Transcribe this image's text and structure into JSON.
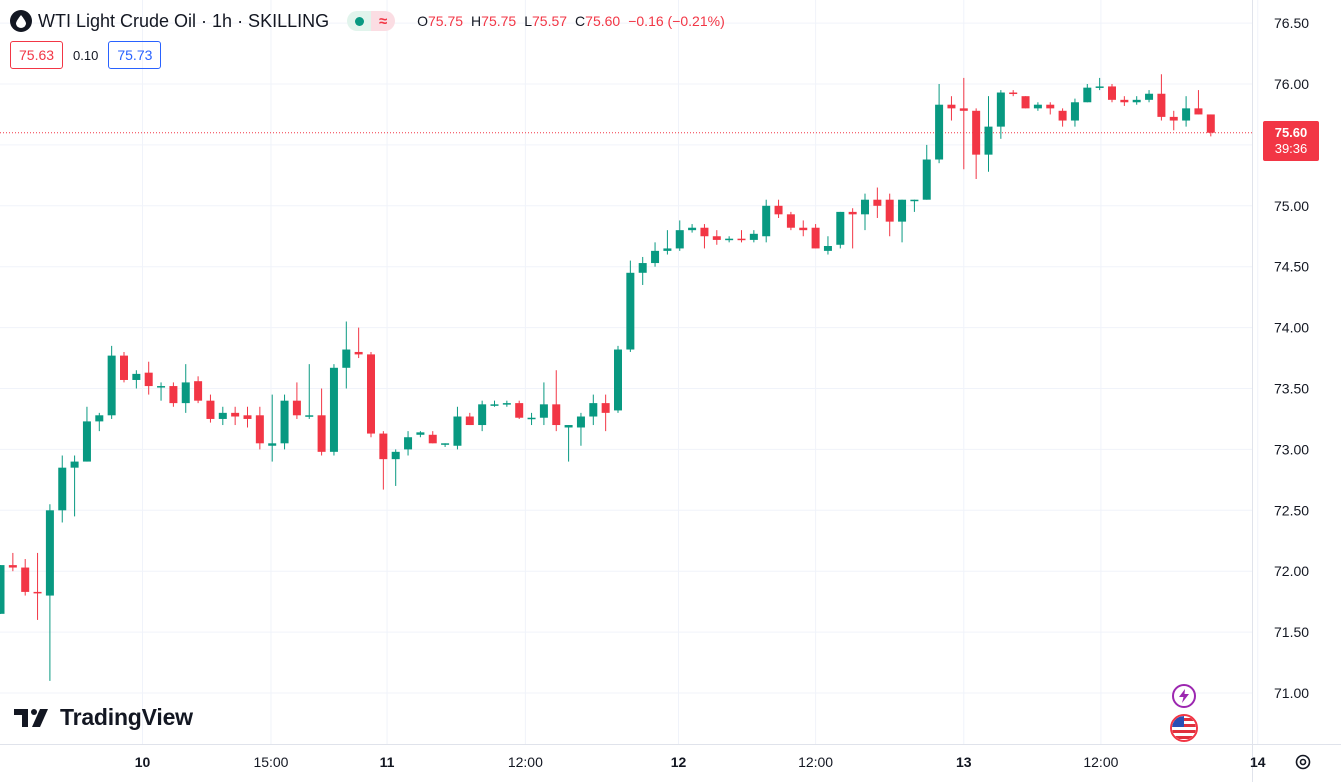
{
  "header": {
    "title": "WTI Light Crude Oil · 1h · SKILLING",
    "status_icon": "market-open-dot",
    "wave_icon": "≈",
    "ohlc": {
      "o_label": "O",
      "o_value": "75.75",
      "h_label": "H",
      "h_value": "75.75",
      "l_label": "L",
      "l_value": "75.57",
      "c_label": "C",
      "c_value": "75.60",
      "change": "−0.16 (−0.21%)"
    }
  },
  "quote": {
    "sell": "75.63",
    "spread": "0.10",
    "buy": "75.73"
  },
  "last_price": {
    "price": "75.60",
    "countdown": "39:36"
  },
  "branding": {
    "logo_text": "TradingView"
  },
  "colors": {
    "up": "#089981",
    "down": "#f23645",
    "grid": "#f0f3fa",
    "axis_text": "#131722",
    "quote_buy": "#2962ff"
  },
  "icons": {
    "lightning": "lightning-icon",
    "flag": "us-flag-icon",
    "settings": "gear-icon"
  },
  "chart_data": {
    "type": "candlestick",
    "interval": "1h",
    "ylim": [
      70.85,
      76.65
    ],
    "y_ticks": [
      "76.50",
      "76.00",
      "75.50",
      "75.00",
      "74.50",
      "74.00",
      "73.50",
      "73.00",
      "72.50",
      "72.00",
      "71.50",
      "71.00"
    ],
    "x_ticks": [
      {
        "label": "10",
        "bold": true,
        "idx": 11.5
      },
      {
        "label": "15:00",
        "bold": false,
        "idx": 21.9
      },
      {
        "label": "11",
        "bold": true,
        "idx": 31.3
      },
      {
        "label": "12:00",
        "bold": false,
        "idx": 42.5
      },
      {
        "label": "12",
        "bold": true,
        "idx": 54.9
      },
      {
        "label": "12:00",
        "bold": false,
        "idx": 66.0
      },
      {
        "label": "13",
        "bold": true,
        "idx": 78.0
      },
      {
        "label": "12:00",
        "bold": false,
        "idx": 89.1
      },
      {
        "label": "14",
        "bold": true,
        "idx": 101.8
      }
    ],
    "last_price": 75.6,
    "candles": [
      [
        71.65,
        72.05,
        71.65,
        72.05
      ],
      [
        72.05,
        72.15,
        72.0,
        72.03
      ],
      [
        72.03,
        72.1,
        71.8,
        71.83
      ],
      [
        71.83,
        72.15,
        71.6,
        71.82
      ],
      [
        71.8,
        72.55,
        71.1,
        72.5
      ],
      [
        72.5,
        72.95,
        72.4,
        72.85
      ],
      [
        72.85,
        72.95,
        72.45,
        72.9
      ],
      [
        72.9,
        73.35,
        72.9,
        73.23
      ],
      [
        73.23,
        73.3,
        73.15,
        73.28
      ],
      [
        73.28,
        73.85,
        73.25,
        73.77
      ],
      [
        73.77,
        73.8,
        73.55,
        73.57
      ],
      [
        73.57,
        73.65,
        73.5,
        73.62
      ],
      [
        73.63,
        73.72,
        73.45,
        73.52
      ],
      [
        73.52,
        73.55,
        73.4,
        73.52
      ],
      [
        73.52,
        73.55,
        73.35,
        73.38
      ],
      [
        73.38,
        73.7,
        73.3,
        73.55
      ],
      [
        73.56,
        73.6,
        73.38,
        73.4
      ],
      [
        73.4,
        73.45,
        73.22,
        73.25
      ],
      [
        73.25,
        73.35,
        73.2,
        73.3
      ],
      [
        73.3,
        73.35,
        73.2,
        73.27
      ],
      [
        73.28,
        73.35,
        73.18,
        73.25
      ],
      [
        73.28,
        73.35,
        73.0,
        73.05
      ],
      [
        73.03,
        73.45,
        72.9,
        73.05
      ],
      [
        73.05,
        73.45,
        73.0,
        73.4
      ],
      [
        73.4,
        73.55,
        73.25,
        73.28
      ],
      [
        73.28,
        73.7,
        73.25,
        73.28
      ],
      [
        73.28,
        73.5,
        72.95,
        72.98
      ],
      [
        72.98,
        73.7,
        72.95,
        73.67
      ],
      [
        73.67,
        74.05,
        73.5,
        73.82
      ],
      [
        73.8,
        74.0,
        73.75,
        73.78
      ],
      [
        73.78,
        73.8,
        73.1,
        73.13
      ],
      [
        73.13,
        73.15,
        72.67,
        72.92
      ],
      [
        72.92,
        73.0,
        72.7,
        72.98
      ],
      [
        73.0,
        73.15,
        72.95,
        73.1
      ],
      [
        73.12,
        73.15,
        73.1,
        73.14
      ],
      [
        73.12,
        73.15,
        73.05,
        73.05
      ],
      [
        73.05,
        73.05,
        73.02,
        73.05
      ],
      [
        73.03,
        73.35,
        73.0,
        73.27
      ],
      [
        73.27,
        73.3,
        73.2,
        73.2
      ],
      [
        73.2,
        73.4,
        73.15,
        73.37
      ],
      [
        73.37,
        73.4,
        73.35,
        73.37
      ],
      [
        73.37,
        73.4,
        73.35,
        73.38
      ],
      [
        73.38,
        73.4,
        73.25,
        73.26
      ],
      [
        73.25,
        73.3,
        73.2,
        73.26
      ],
      [
        73.26,
        73.55,
        73.2,
        73.37
      ],
      [
        73.37,
        73.65,
        73.15,
        73.2
      ],
      [
        73.18,
        73.2,
        72.9,
        73.2
      ],
      [
        73.18,
        73.3,
        73.03,
        73.27
      ],
      [
        73.27,
        73.45,
        73.2,
        73.38
      ],
      [
        73.38,
        73.45,
        73.15,
        73.3
      ],
      [
        73.32,
        73.85,
        73.3,
        73.82
      ],
      [
        73.82,
        74.55,
        73.8,
        74.45
      ],
      [
        74.45,
        74.58,
        74.35,
        74.53
      ],
      [
        74.53,
        74.7,
        74.5,
        74.63
      ],
      [
        74.63,
        74.8,
        74.6,
        74.65
      ],
      [
        74.65,
        74.88,
        74.63,
        74.8
      ],
      [
        74.8,
        74.85,
        74.78,
        74.82
      ],
      [
        74.82,
        74.85,
        74.65,
        74.75
      ],
      [
        74.75,
        74.8,
        74.68,
        74.72
      ],
      [
        74.72,
        74.75,
        74.7,
        74.73
      ],
      [
        74.73,
        74.8,
        74.7,
        74.72
      ],
      [
        74.72,
        74.8,
        74.7,
        74.77
      ],
      [
        74.75,
        75.05,
        74.7,
        75.0
      ],
      [
        75.0,
        75.05,
        74.9,
        74.93
      ],
      [
        74.93,
        74.95,
        74.8,
        74.82
      ],
      [
        74.82,
        74.88,
        74.75,
        74.8
      ],
      [
        74.82,
        74.85,
        74.65,
        74.65
      ],
      [
        74.63,
        74.75,
        74.6,
        74.67
      ],
      [
        74.68,
        74.95,
        74.65,
        74.95
      ],
      [
        74.95,
        74.98,
        74.65,
        74.93
      ],
      [
        74.93,
        75.1,
        74.8,
        75.05
      ],
      [
        75.05,
        75.15,
        74.9,
        75.0
      ],
      [
        75.05,
        75.1,
        74.75,
        74.87
      ],
      [
        74.87,
        75.05,
        74.7,
        75.05
      ],
      [
        75.05,
        75.05,
        74.95,
        75.05
      ],
      [
        75.05,
        75.5,
        75.05,
        75.38
      ],
      [
        75.38,
        76.0,
        75.35,
        75.83
      ],
      [
        75.83,
        75.9,
        75.7,
        75.8
      ],
      [
        75.8,
        76.05,
        75.3,
        75.78
      ],
      [
        75.78,
        75.8,
        75.22,
        75.42
      ],
      [
        75.42,
        75.9,
        75.28,
        75.65
      ],
      [
        75.65,
        75.95,
        75.55,
        75.93
      ],
      [
        75.93,
        75.95,
        75.9,
        75.92
      ],
      [
        75.9,
        75.9,
        75.8,
        75.8
      ],
      [
        75.8,
        75.85,
        75.78,
        75.83
      ],
      [
        75.83,
        75.85,
        75.75,
        75.8
      ],
      [
        75.78,
        75.8,
        75.65,
        75.7
      ],
      [
        75.7,
        75.88,
        75.65,
        75.85
      ],
      [
        75.85,
        76.0,
        75.85,
        75.97
      ],
      [
        75.97,
        76.05,
        75.95,
        75.98
      ],
      [
        75.98,
        76.0,
        75.85,
        75.87
      ],
      [
        75.87,
        75.9,
        75.82,
        75.85
      ],
      [
        75.85,
        75.9,
        75.83,
        75.87
      ],
      [
        75.87,
        75.95,
        75.85,
        75.92
      ],
      [
        75.92,
        76.08,
        75.7,
        75.73
      ],
      [
        75.73,
        75.78,
        75.62,
        75.7
      ],
      [
        75.7,
        75.9,
        75.65,
        75.8
      ],
      [
        75.8,
        75.95,
        75.75,
        75.75
      ],
      [
        75.75,
        75.75,
        75.57,
        75.6
      ]
    ]
  }
}
